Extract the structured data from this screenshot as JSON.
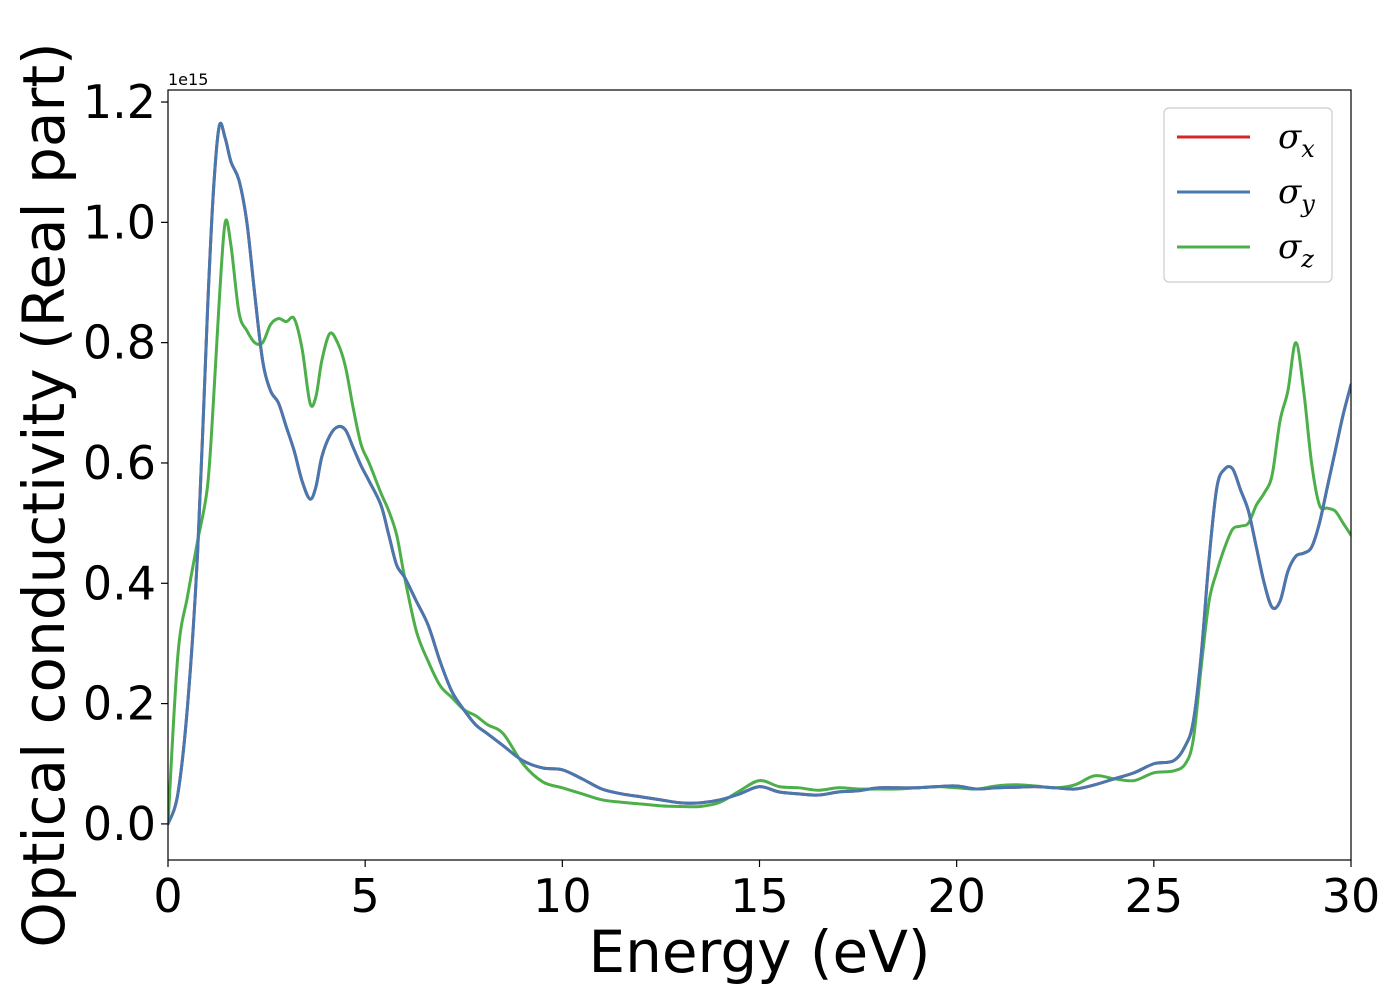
{
  "chart_data": {
    "type": "line",
    "xlabel": "Energy (eV)",
    "ylabel": "Optical conductivity (Real part)",
    "y_offset_text": "1e15",
    "xlim": [
      0,
      30
    ],
    "ylim": [
      -0.06,
      1.22
    ],
    "xticks": [
      0,
      5,
      10,
      15,
      20,
      25,
      30
    ],
    "xtick_labels": [
      "0",
      "5",
      "10",
      "15",
      "20",
      "25",
      "30"
    ],
    "yticks": [
      0.0,
      0.2,
      0.4,
      0.6,
      0.8,
      1.0,
      1.2
    ],
    "ytick_labels": [
      "0.0",
      "0.2",
      "0.4",
      "0.6",
      "0.8",
      "1.0",
      "1.2"
    ],
    "grid": false,
    "legend_position": "top-right",
    "series": [
      {
        "name": "σx",
        "label_base": "σ",
        "label_sub": "x",
        "color": "#d62728",
        "x": [
          0,
          0.25,
          0.5,
          0.75,
          1.0,
          1.15,
          1.3,
          1.45,
          1.6,
          1.8,
          2.0,
          2.2,
          2.4,
          2.6,
          2.8,
          3.0,
          3.2,
          3.4,
          3.6,
          3.75,
          3.9,
          4.1,
          4.3,
          4.5,
          4.7,
          4.9,
          5.1,
          5.4,
          5.6,
          5.8,
          6.0,
          6.3,
          6.6,
          6.9,
          7.2,
          7.5,
          7.8,
          8.1,
          8.5,
          9.0,
          9.5,
          10.0,
          10.5,
          11.0,
          11.5,
          12.0,
          12.5,
          13.0,
          13.5,
          14.0,
          14.5,
          15.0,
          15.5,
          16.0,
          16.5,
          17.0,
          17.5,
          18.0,
          18.5,
          19.0,
          19.5,
          20.0,
          20.5,
          21.0,
          21.5,
          22.0,
          22.5,
          23.0,
          23.5,
          24.0,
          24.5,
          25.0,
          25.5,
          25.8,
          26.0,
          26.2,
          26.4,
          26.6,
          26.8,
          27.0,
          27.2,
          27.4,
          27.6,
          27.8,
          28.0,
          28.2,
          28.4,
          28.6,
          28.8,
          29.0,
          29.2,
          29.4,
          29.6,
          29.8,
          30.0
        ],
        "y": [
          0.0,
          0.05,
          0.2,
          0.45,
          0.85,
          1.05,
          1.16,
          1.14,
          1.1,
          1.07,
          1.0,
          0.88,
          0.77,
          0.72,
          0.7,
          0.66,
          0.62,
          0.57,
          0.54,
          0.56,
          0.61,
          0.645,
          0.66,
          0.655,
          0.625,
          0.595,
          0.57,
          0.53,
          0.48,
          0.43,
          0.41,
          0.37,
          0.33,
          0.27,
          0.22,
          0.19,
          0.165,
          0.15,
          0.13,
          0.105,
          0.093,
          0.09,
          0.075,
          0.058,
          0.05,
          0.045,
          0.04,
          0.035,
          0.035,
          0.04,
          0.05,
          0.062,
          0.053,
          0.05,
          0.048,
          0.053,
          0.055,
          0.06,
          0.06,
          0.06,
          0.062,
          0.063,
          0.058,
          0.06,
          0.061,
          0.062,
          0.06,
          0.058,
          0.065,
          0.075,
          0.085,
          0.1,
          0.105,
          0.13,
          0.17,
          0.28,
          0.44,
          0.56,
          0.59,
          0.59,
          0.555,
          0.52,
          0.46,
          0.4,
          0.36,
          0.37,
          0.42,
          0.445,
          0.45,
          0.46,
          0.5,
          0.56,
          0.62,
          0.68,
          0.73
        ]
      },
      {
        "name": "σy",
        "label_base": "σ",
        "label_sub": "y",
        "color": "#4878b0",
        "x": [
          0,
          0.25,
          0.5,
          0.75,
          1.0,
          1.15,
          1.3,
          1.45,
          1.6,
          1.8,
          2.0,
          2.2,
          2.4,
          2.6,
          2.8,
          3.0,
          3.2,
          3.4,
          3.6,
          3.75,
          3.9,
          4.1,
          4.3,
          4.5,
          4.7,
          4.9,
          5.1,
          5.4,
          5.6,
          5.8,
          6.0,
          6.3,
          6.6,
          6.9,
          7.2,
          7.5,
          7.8,
          8.1,
          8.5,
          9.0,
          9.5,
          10.0,
          10.5,
          11.0,
          11.5,
          12.0,
          12.5,
          13.0,
          13.5,
          14.0,
          14.5,
          15.0,
          15.5,
          16.0,
          16.5,
          17.0,
          17.5,
          18.0,
          18.5,
          19.0,
          19.5,
          20.0,
          20.5,
          21.0,
          21.5,
          22.0,
          22.5,
          23.0,
          23.5,
          24.0,
          24.5,
          25.0,
          25.5,
          25.8,
          26.0,
          26.2,
          26.4,
          26.6,
          26.8,
          27.0,
          27.2,
          27.4,
          27.6,
          27.8,
          28.0,
          28.2,
          28.4,
          28.6,
          28.8,
          29.0,
          29.2,
          29.4,
          29.6,
          29.8,
          30.0
        ],
        "y": [
          0.0,
          0.05,
          0.2,
          0.45,
          0.85,
          1.05,
          1.16,
          1.14,
          1.1,
          1.07,
          1.0,
          0.88,
          0.77,
          0.72,
          0.7,
          0.66,
          0.62,
          0.57,
          0.54,
          0.56,
          0.61,
          0.645,
          0.66,
          0.655,
          0.625,
          0.595,
          0.57,
          0.53,
          0.48,
          0.43,
          0.41,
          0.37,
          0.33,
          0.27,
          0.22,
          0.19,
          0.165,
          0.15,
          0.13,
          0.105,
          0.093,
          0.09,
          0.075,
          0.058,
          0.05,
          0.045,
          0.04,
          0.035,
          0.035,
          0.04,
          0.05,
          0.062,
          0.053,
          0.05,
          0.048,
          0.053,
          0.055,
          0.06,
          0.06,
          0.06,
          0.062,
          0.063,
          0.058,
          0.06,
          0.061,
          0.062,
          0.06,
          0.058,
          0.065,
          0.075,
          0.085,
          0.1,
          0.105,
          0.13,
          0.17,
          0.28,
          0.44,
          0.56,
          0.59,
          0.59,
          0.555,
          0.52,
          0.46,
          0.4,
          0.36,
          0.37,
          0.42,
          0.445,
          0.45,
          0.46,
          0.5,
          0.56,
          0.62,
          0.68,
          0.73
        ]
      },
      {
        "name": "σz",
        "label_base": "σ",
        "label_sub": "z",
        "color": "#4daf4a",
        "x": [
          0,
          0.25,
          0.5,
          0.75,
          1.0,
          1.15,
          1.3,
          1.45,
          1.6,
          1.8,
          2.0,
          2.2,
          2.4,
          2.6,
          2.8,
          3.0,
          3.2,
          3.4,
          3.6,
          3.75,
          3.9,
          4.1,
          4.3,
          4.5,
          4.7,
          4.9,
          5.1,
          5.4,
          5.6,
          5.8,
          6.0,
          6.3,
          6.6,
          6.9,
          7.2,
          7.5,
          7.8,
          8.1,
          8.5,
          9.0,
          9.5,
          10.0,
          10.5,
          11.0,
          11.5,
          12.0,
          12.5,
          13.0,
          13.5,
          14.0,
          14.5,
          15.0,
          15.5,
          16.0,
          16.5,
          17.0,
          17.5,
          18.0,
          18.5,
          19.0,
          19.5,
          20.0,
          20.5,
          21.0,
          21.5,
          22.0,
          22.5,
          23.0,
          23.5,
          24.0,
          24.5,
          25.0,
          25.5,
          25.8,
          26.0,
          26.2,
          26.4,
          26.6,
          26.8,
          27.0,
          27.2,
          27.4,
          27.6,
          27.8,
          28.0,
          28.2,
          28.4,
          28.6,
          28.8,
          29.0,
          29.2,
          29.4,
          29.6,
          29.8,
          30.0
        ],
        "y": [
          0.0,
          0.28,
          0.38,
          0.47,
          0.56,
          0.7,
          0.87,
          1.0,
          0.96,
          0.85,
          0.82,
          0.8,
          0.8,
          0.83,
          0.84,
          0.835,
          0.84,
          0.79,
          0.7,
          0.71,
          0.77,
          0.815,
          0.8,
          0.76,
          0.69,
          0.63,
          0.6,
          0.55,
          0.52,
          0.48,
          0.41,
          0.32,
          0.27,
          0.23,
          0.21,
          0.19,
          0.18,
          0.165,
          0.15,
          0.1,
          0.07,
          0.06,
          0.05,
          0.04,
          0.036,
          0.033,
          0.03,
          0.029,
          0.029,
          0.036,
          0.055,
          0.072,
          0.062,
          0.06,
          0.056,
          0.06,
          0.058,
          0.058,
          0.058,
          0.06,
          0.062,
          0.06,
          0.058,
          0.063,
          0.065,
          0.063,
          0.06,
          0.065,
          0.08,
          0.075,
          0.072,
          0.085,
          0.088,
          0.1,
          0.14,
          0.26,
          0.37,
          0.42,
          0.46,
          0.49,
          0.495,
          0.5,
          0.53,
          0.55,
          0.58,
          0.67,
          0.72,
          0.8,
          0.72,
          0.6,
          0.53,
          0.525,
          0.52,
          0.5,
          0.48
        ]
      }
    ]
  }
}
